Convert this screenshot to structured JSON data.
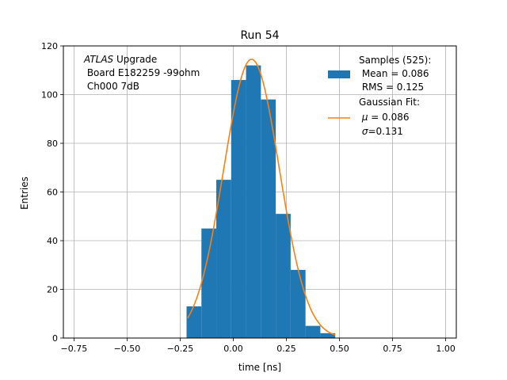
{
  "chart_data": {
    "type": "bar",
    "title": "Run 54",
    "xlabel": "time [ns]",
    "ylabel": "Entries",
    "xlim": [
      -0.8,
      1.05
    ],
    "ylim": [
      0,
      120
    ],
    "xticks": [
      -0.75,
      -0.5,
      -0.25,
      0.0,
      0.25,
      0.5,
      0.75,
      1.0
    ],
    "xtick_labels": [
      "−0.75",
      "−0.50",
      "−0.25",
      "0.00",
      "0.25",
      "0.50",
      "0.75",
      "1.00"
    ],
    "yticks": [
      0,
      20,
      40,
      60,
      80,
      100,
      120
    ],
    "ytick_labels": [
      "0",
      "20",
      "40",
      "60",
      "80",
      "100",
      "120"
    ],
    "grid": true,
    "histogram": {
      "name": "Samples",
      "color": "#1f77b4",
      "bin_edges": [
        -0.22,
        -0.15,
        -0.08,
        -0.01,
        0.06,
        0.13,
        0.2,
        0.27,
        0.34,
        0.41,
        0.48
      ],
      "counts": [
        13,
        45,
        65,
        106,
        112,
        98,
        51,
        28,
        5,
        2
      ]
    },
    "gaussian_fit": {
      "name": "Gaussian Fit",
      "color": "#ff7f0e",
      "amplitude": 114.5,
      "mu": 0.086,
      "sigma": 0.131,
      "x_range": [
        -0.215,
        0.48
      ]
    },
    "annotation": {
      "italic": "ATLAS",
      "rest": " Upgrade",
      "line2": " Board E182259 -99ohm",
      "line3": " Ch000 7dB"
    },
    "legend": {
      "position": "top-right",
      "samples_line1": "Samples (525):",
      "samples_line2": " Mean = 0.086",
      "samples_line3": " RMS = 0.125",
      "fit_line1": "Gaussian Fit:",
      "fit_mu_symbol": "μ",
      "fit_mu_rest": " = 0.086",
      "fit_sigma_symbol": "σ",
      "fit_sigma_rest": "=0.131"
    }
  }
}
